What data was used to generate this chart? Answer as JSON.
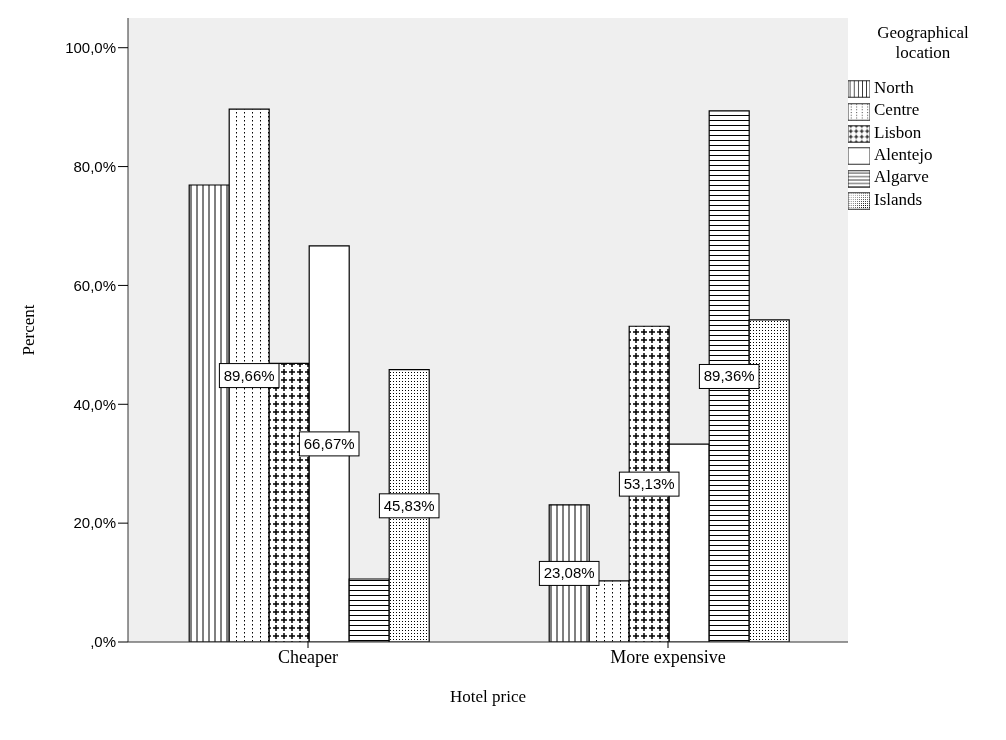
{
  "chart_data": {
    "type": "bar",
    "xlabel": "Hotel price",
    "ylabel": "Percent",
    "legend_title": "Geographical location",
    "legend": "top right",
    "categories": [
      "Cheaper",
      "More expensive"
    ],
    "series": [
      {
        "name": "North",
        "color": "#000000",
        "values": [
          76.9,
          23.08
        ],
        "value_labels": [
          null,
          "23,08%"
        ]
      },
      {
        "name": "Centre",
        "color": "#000000",
        "values": [
          89.66,
          10.3
        ],
        "value_labels": [
          "89,66%",
          null
        ]
      },
      {
        "name": "Lisbon",
        "color": "#000000",
        "values": [
          46.9,
          53.13
        ],
        "value_labels": [
          null,
          "53,13%"
        ]
      },
      {
        "name": "Alentejo",
        "color": "#000000",
        "values": [
          66.67,
          33.3
        ],
        "value_labels": [
          "66,67%",
          null
        ]
      },
      {
        "name": "Algarve",
        "color": "#000000",
        "values": [
          10.6,
          89.36
        ],
        "value_labels": [
          null,
          "89,36%"
        ]
      },
      {
        "name": "Islands",
        "color": "#000000",
        "values": [
          45.83,
          54.2
        ],
        "value_labels": [
          "45,83%",
          null
        ]
      }
    ],
    "ylim": [
      0,
      105
    ],
    "yticks": [
      {
        "value": 0,
        "label": ",0%"
      },
      {
        "value": 20,
        "label": "20,0%"
      },
      {
        "value": 40,
        "label": "40,0%"
      },
      {
        "value": 60,
        "label": "60,0%"
      },
      {
        "value": 80,
        "label": "80,0%"
      },
      {
        "value": 100,
        "label": "100,0%"
      }
    ],
    "grid": false
  }
}
